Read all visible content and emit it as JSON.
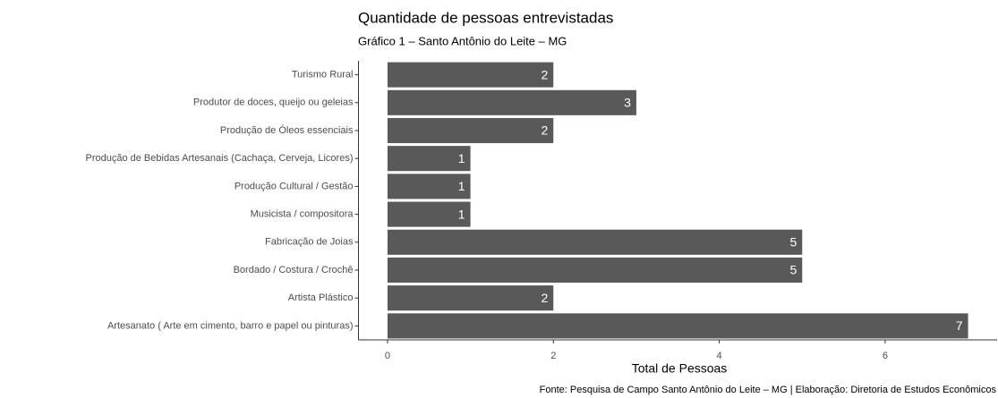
{
  "chart_data": {
    "type": "bar",
    "orientation": "horizontal",
    "title": "Quantidade de pessoas entrevistadas",
    "subtitle": "Gráfico 1 – Santo Antônio do Leite – MG",
    "x_label": "Total de Pessoas",
    "caption": "Fonte: Pesquisa de Campo Santo Antônio do Leite – MG | Elaboração: Diretoria de Estudos Econômicos",
    "categories": [
      "Turismo Rural",
      "Produtor de doces, queijo ou geleias",
      "Produção de Óleos essenciais",
      "Produção de Bebidas Artesanais (Cachaça, Cerveja, Licores)",
      "Produção Cultural / Gestão",
      "Musicista / compositora",
      "Fabricação de Joias",
      "Bordado / Costura / Crochê",
      "Artista Plástico",
      "Artesanato ( Arte em cimento, barro e papel ou pinturas)"
    ],
    "values": [
      2,
      3,
      2,
      1,
      1,
      1,
      5,
      5,
      2,
      7
    ],
    "color": "#595959",
    "xlim": [
      -0.35,
      7.35
    ],
    "xticks": [
      0,
      2,
      4,
      6
    ]
  }
}
